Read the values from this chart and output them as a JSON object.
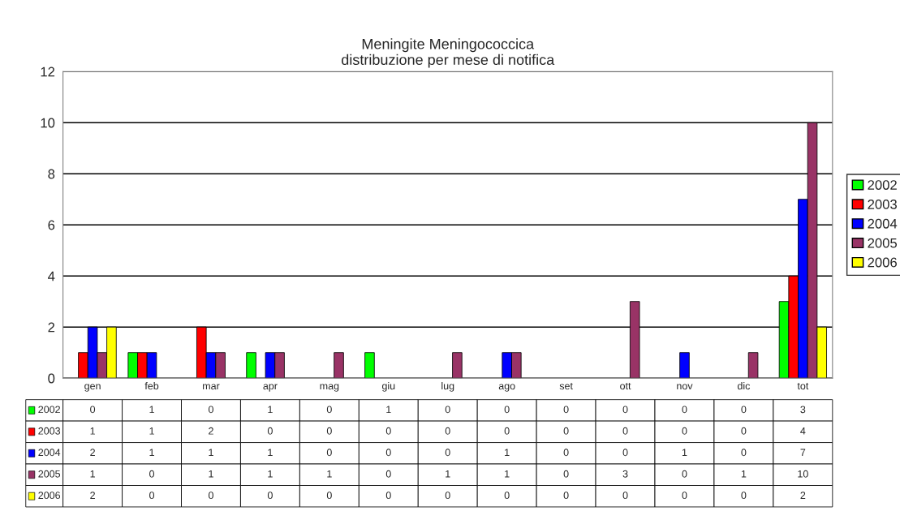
{
  "chart_data": {
    "type": "bar",
    "title": "Meningite Meningococcica\ndistribuzione per mese di notifica",
    "categories": [
      "gen",
      "feb",
      "mar",
      "apr",
      "mag",
      "giu",
      "lug",
      "ago",
      "set",
      "ott",
      "nov",
      "dic",
      "tot"
    ],
    "series": [
      {
        "name": "2002",
        "color": "#00ff00",
        "values": [
          0,
          1,
          0,
          1,
          0,
          1,
          0,
          0,
          0,
          0,
          0,
          0,
          3
        ]
      },
      {
        "name": "2003",
        "color": "#ff0000",
        "values": [
          1,
          1,
          2,
          0,
          0,
          0,
          0,
          0,
          0,
          0,
          0,
          0,
          4
        ]
      },
      {
        "name": "2004",
        "color": "#0000ff",
        "values": [
          2,
          1,
          1,
          1,
          0,
          0,
          0,
          1,
          0,
          0,
          1,
          0,
          7
        ]
      },
      {
        "name": "2005",
        "color": "#993366",
        "values": [
          1,
          0,
          1,
          1,
          1,
          0,
          1,
          1,
          0,
          3,
          0,
          1,
          10
        ]
      },
      {
        "name": "2006",
        "color": "#ffff00",
        "values": [
          2,
          0,
          0,
          0,
          0,
          0,
          0,
          0,
          0,
          0,
          0,
          0,
          2
        ]
      }
    ],
    "ylim": [
      0,
      12
    ],
    "yticks": [
      0,
      2,
      4,
      6,
      8,
      10,
      12
    ],
    "grid": "y",
    "legend": "right",
    "data_labels": true
  }
}
